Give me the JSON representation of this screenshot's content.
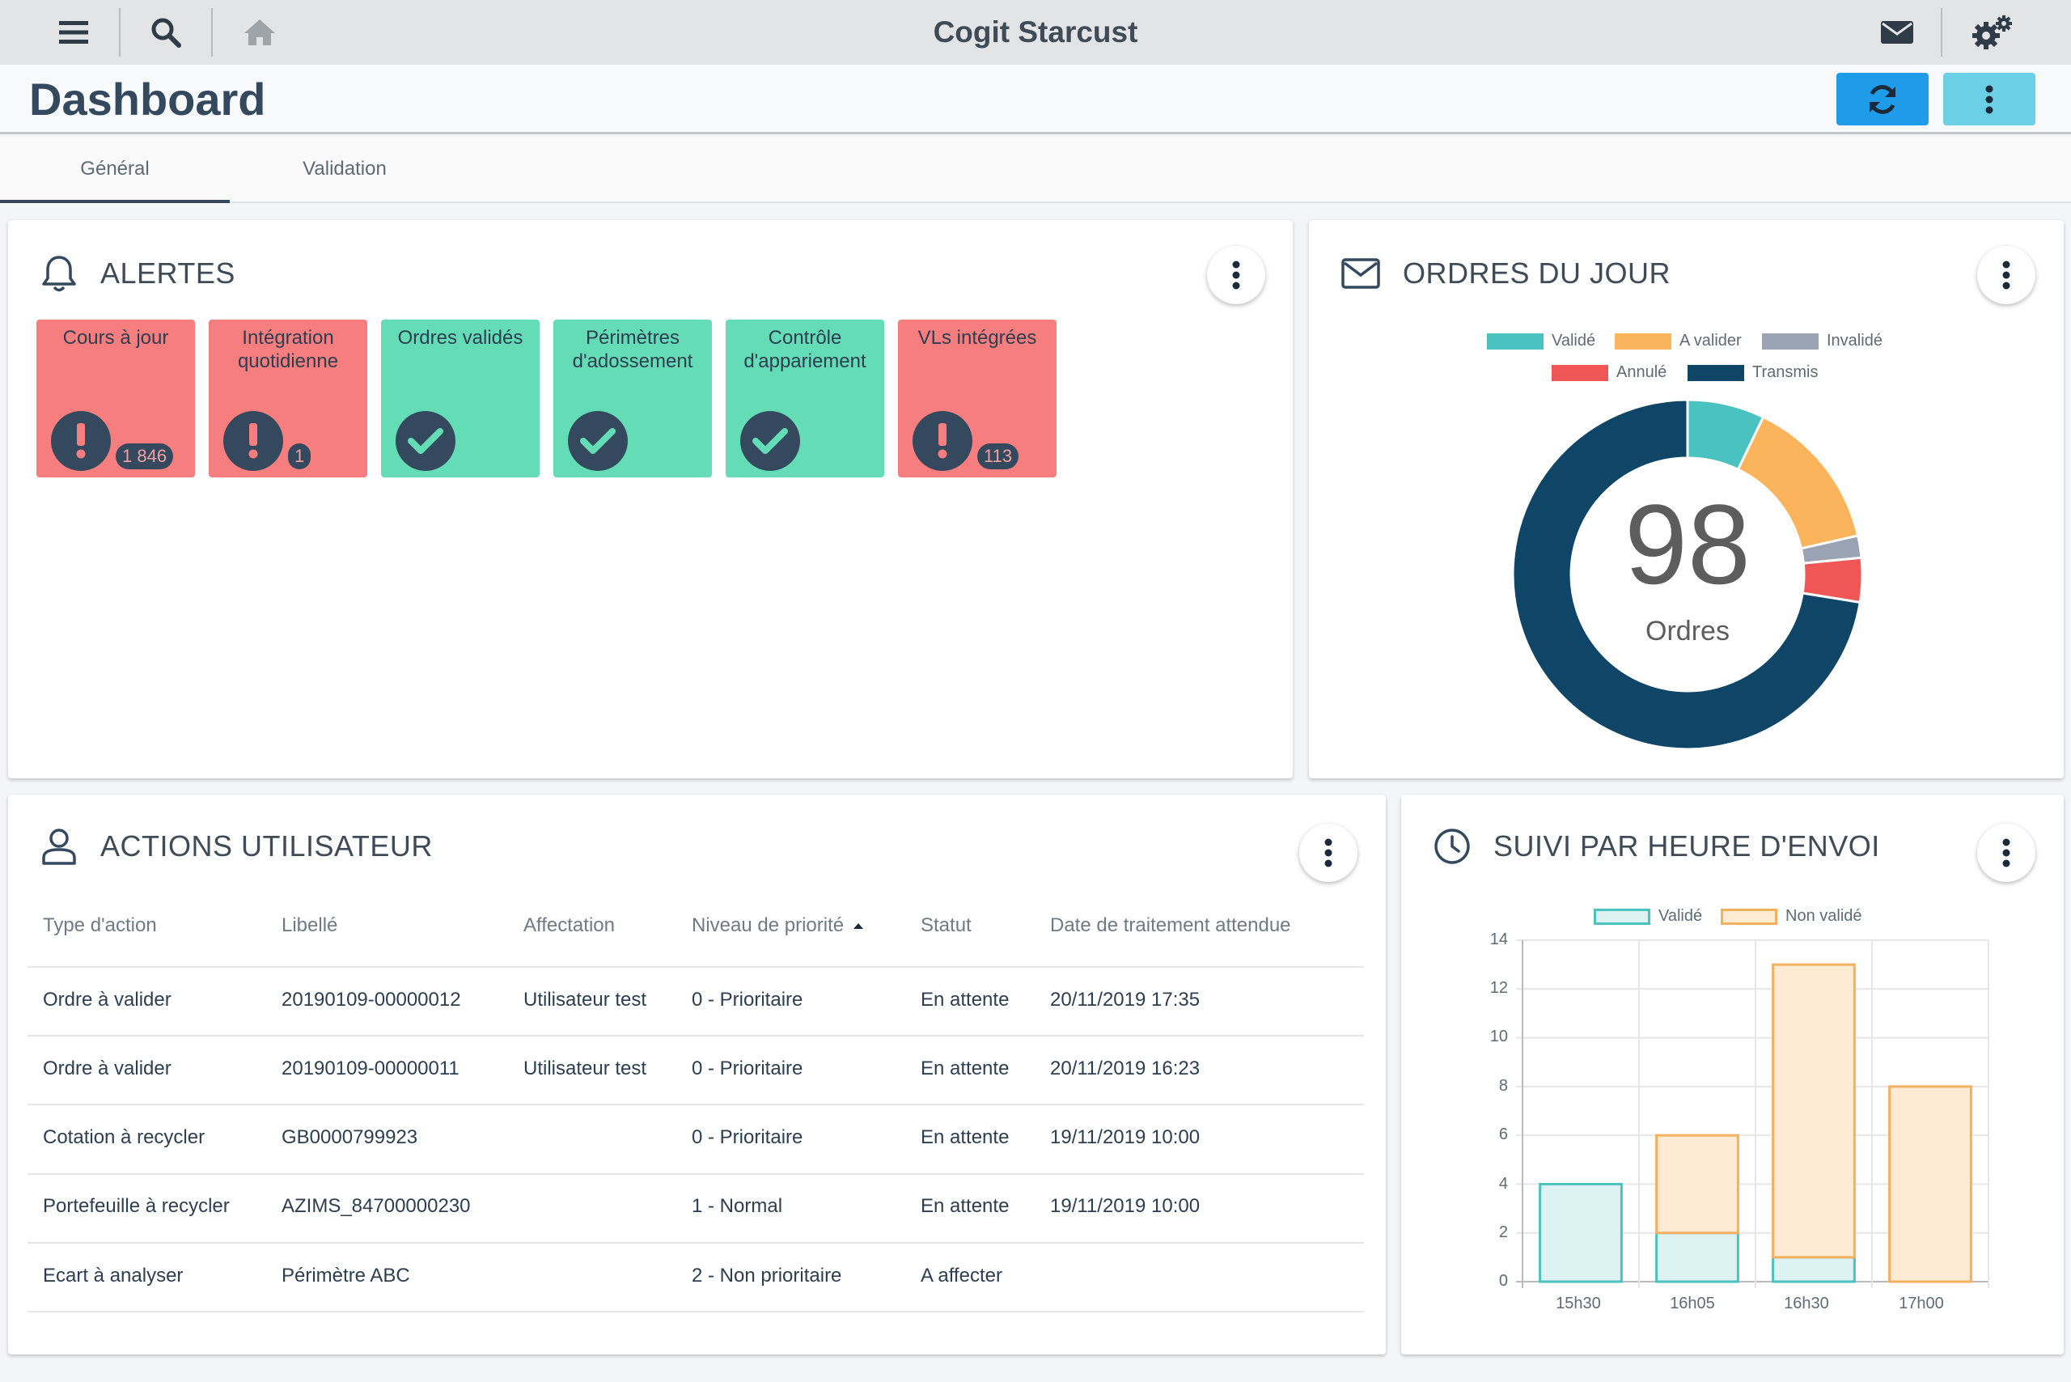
{
  "app": {
    "title": "Cogit Starcust"
  },
  "header": {
    "title": "Dashboard"
  },
  "tabs": [
    {
      "label": "Général",
      "active": true
    },
    {
      "label": "Validation",
      "active": false
    }
  ],
  "alerts": {
    "title": "ALERTES",
    "tiles": [
      {
        "label": "Cours à jour",
        "status": "error",
        "icon": "exclamation-icon",
        "badge": "1 846"
      },
      {
        "label": "Intégration quotidienne",
        "status": "error",
        "icon": "exclamation-icon",
        "badge": "1"
      },
      {
        "label": "Ordres validés",
        "status": "ok",
        "icon": "check-icon",
        "badge": ""
      },
      {
        "label": "Périmètres d'adossement",
        "status": "ok",
        "icon": "check-icon",
        "badge": ""
      },
      {
        "label": "Contrôle d'appariement",
        "status": "ok",
        "icon": "check-icon",
        "badge": ""
      },
      {
        "label": "VLs intégrées",
        "status": "error",
        "icon": "exclamation-icon",
        "badge": "113"
      }
    ]
  },
  "orders": {
    "title": "ORDRES DU JOUR",
    "center_value": "98",
    "center_label": "Ordres",
    "legend": [
      "Validé",
      "A valider",
      "Invalidé",
      "Annulé",
      "Transmis"
    ],
    "chart_data": {
      "type": "pie",
      "categories": [
        "Validé",
        "A valider",
        "Invalidé",
        "Annulé",
        "Transmis"
      ],
      "values": [
        7,
        14,
        2,
        4,
        71
      ],
      "colors": [
        "#4ac2c0",
        "#fbb45c",
        "#9aa3b3",
        "#f05656",
        "#0f4566"
      ],
      "donut": true,
      "total": 98
    }
  },
  "actions": {
    "title": "ACTIONS UTILISATEUR",
    "columns": [
      "Type d'action",
      "Libellé",
      "Affectation",
      "Niveau de priorité",
      "Statut",
      "Date de traitement attendue"
    ],
    "rows": [
      [
        "Ordre à valider",
        "20190109-00000012",
        "Utilisateur test",
        "0 - Prioritaire",
        "En attente",
        "20/11/2019 17:35"
      ],
      [
        "Ordre à valider",
        "20190109-00000011",
        "Utilisateur test",
        "0 - Prioritaire",
        "En attente",
        "20/11/2019 16:23"
      ],
      [
        "Cotation à recycler",
        "GB0000799923",
        "",
        "0 - Prioritaire",
        "En attente",
        "19/11/2019 10:00"
      ],
      [
        "Portefeuille à recycler",
        "AZIMS_84700000230",
        "",
        "1 - Normal",
        "En attente",
        "19/11/2019 10:00"
      ],
      [
        "Ecart à analyser",
        "Périmètre ABC",
        "",
        "2 - Non prioritaire",
        "A affecter",
        ""
      ]
    ]
  },
  "hourly": {
    "title": "SUIVI PAR HEURE D'ENVOI",
    "chart_data": {
      "type": "bar",
      "stacked": true,
      "categories": [
        "15h30",
        "16h05",
        "16h30",
        "17h00"
      ],
      "series": [
        {
          "name": "Validé",
          "values": [
            4,
            2,
            1,
            0
          ],
          "color": "#4ac2c0"
        },
        {
          "name": "Non validé",
          "values": [
            0,
            4,
            12,
            8
          ],
          "color": "#f3b15f"
        }
      ],
      "ylim": [
        0,
        14
      ],
      "yticks": [
        "0",
        "2",
        "4",
        "6",
        "8",
        "10",
        "12",
        "14"
      ],
      "grid": true,
      "legend": "top"
    }
  }
}
